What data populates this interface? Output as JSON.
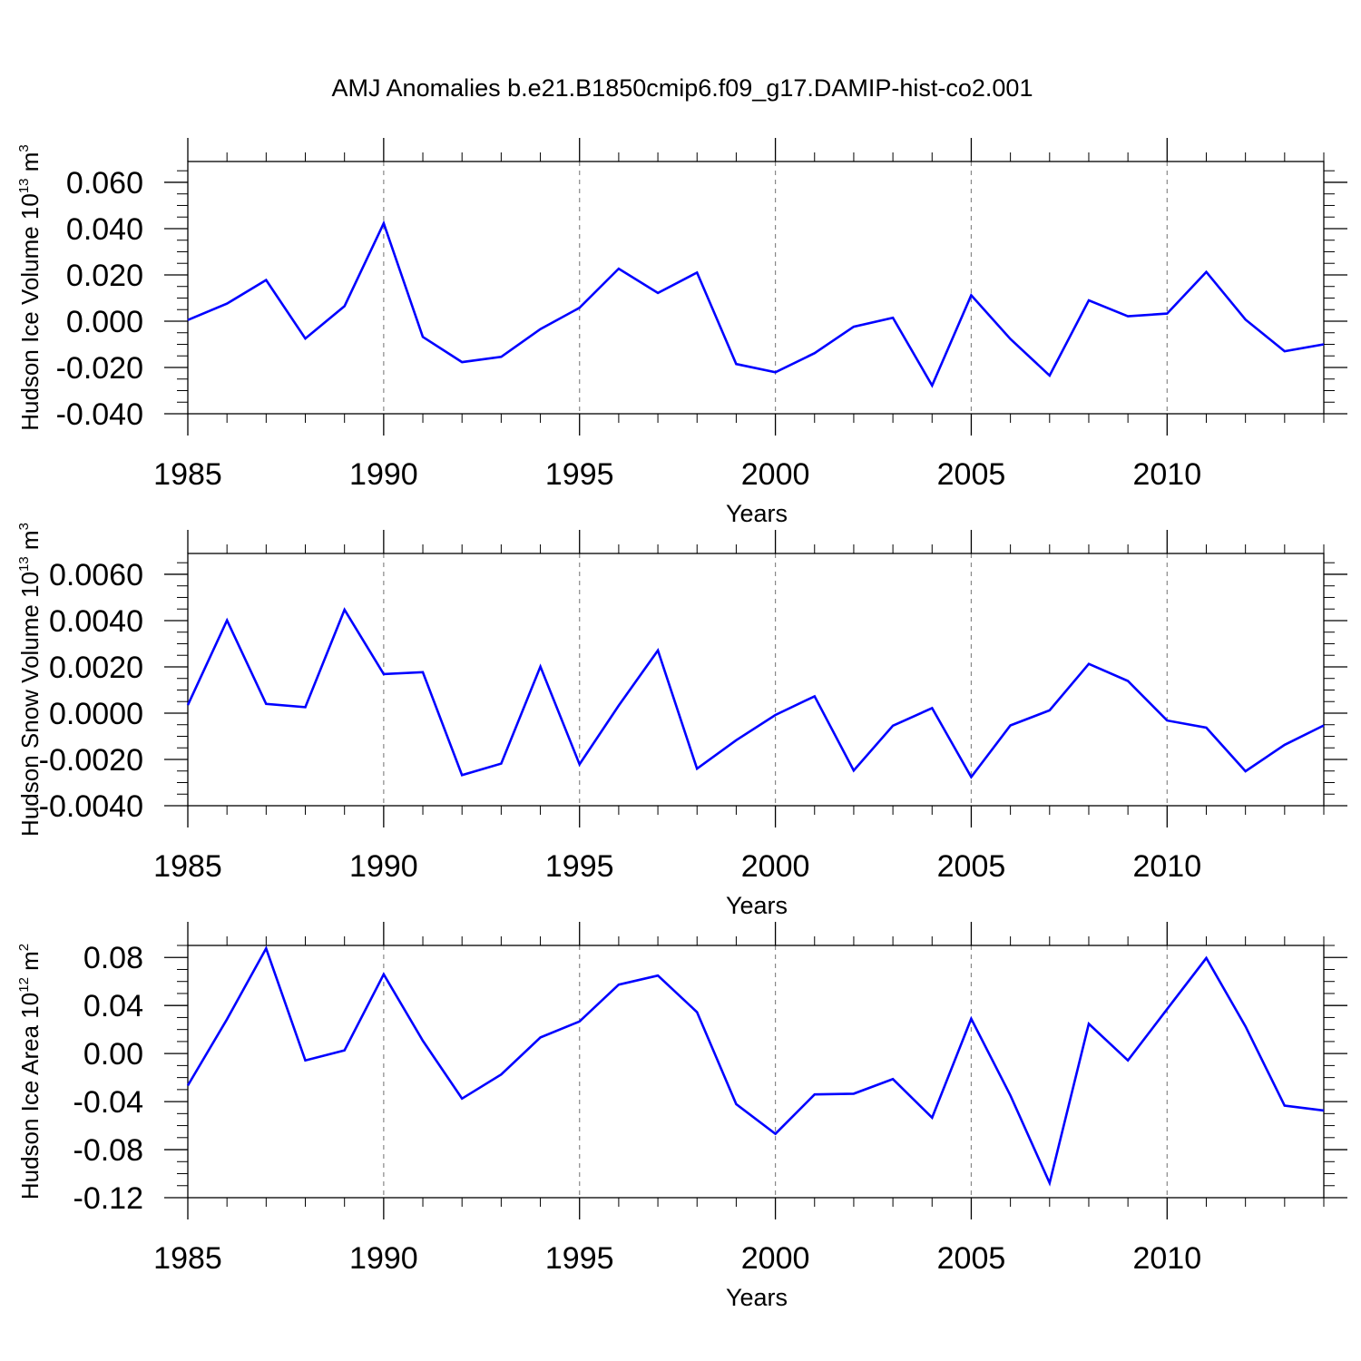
{
  "page": {
    "title": "AMJ Anomalies b.e21.B1850cmip6.f09_g17.DAMIP-hist-co2.001"
  },
  "chart_data": [
    {
      "type": "line",
      "xlabel": "Years",
      "ylabel": {
        "main": "Hudson Ice Volume 10",
        "exp": "13",
        "unit": " m",
        "unit_exp": "3"
      },
      "xlim": [
        1985,
        2014
      ],
      "ylim": [
        -0.04,
        0.069
      ],
      "yticks": [
        -0.04,
        -0.02,
        0.0,
        0.02,
        0.04,
        0.06
      ],
      "ytick_labels": [
        "-0.040",
        "-0.020",
        "0.000",
        "0.020",
        "0.040",
        "0.060"
      ],
      "ytick_minor_step": 0.005,
      "xticks": [
        1985,
        1990,
        1995,
        2000,
        2005,
        2010
      ],
      "xtick_labels": [
        "1985",
        "1990",
        "1995",
        "2000",
        "2005",
        "2010"
      ],
      "grid": "dashed vertical at major x ticks",
      "series": [
        {
          "color": "#0000ff",
          "x": [
            1985,
            1986,
            1987,
            1988,
            1989,
            1990,
            1991,
            1992,
            1993,
            1994,
            1995,
            1996,
            1997,
            1998,
            1999,
            2000,
            2001,
            2002,
            2003,
            2004,
            2005,
            2006,
            2007,
            2008,
            2009,
            2010,
            2011,
            2012,
            2013,
            2014
          ],
          "values": [
            0.0005,
            0.0076,
            0.0178,
            -0.0075,
            0.0065,
            0.0423,
            -0.0068,
            -0.0177,
            -0.0154,
            -0.0034,
            0.0058,
            0.0227,
            0.0122,
            0.021,
            -0.0185,
            -0.0221,
            -0.0138,
            -0.0024,
            0.0015,
            -0.0278,
            0.0112,
            -0.0077,
            -0.0235,
            0.009,
            0.0021,
            0.0033,
            0.0213,
            0.0007,
            -0.013,
            -0.01
          ]
        }
      ]
    },
    {
      "type": "line",
      "xlabel": "Years",
      "ylabel": {
        "main": "Hudson Snow Volume 10",
        "exp": "13",
        "unit": " m",
        "unit_exp": "3"
      },
      "xlim": [
        1985,
        2014
      ],
      "ylim": [
        -0.004,
        0.0069
      ],
      "yticks": [
        -0.004,
        -0.002,
        0.0,
        0.002,
        0.004,
        0.006
      ],
      "ytick_labels": [
        "-0.0040",
        "-0.0020",
        "0.0000",
        "0.0020",
        "0.0040",
        "0.0060"
      ],
      "ytick_minor_step": 0.0005,
      "xticks": [
        1985,
        1990,
        1995,
        2000,
        2005,
        2010
      ],
      "xtick_labels": [
        "1985",
        "1990",
        "1995",
        "2000",
        "2005",
        "2010"
      ],
      "grid": "dashed vertical at major x ticks",
      "series": [
        {
          "color": "#0000ff",
          "x": [
            1985,
            1986,
            1987,
            1988,
            1989,
            1990,
            1991,
            1992,
            1993,
            1994,
            1995,
            1996,
            1997,
            1998,
            1999,
            2000,
            2001,
            2002,
            2003,
            2004,
            2005,
            2006,
            2007,
            2008,
            2009,
            2010,
            2011,
            2012,
            2013,
            2014
          ],
          "values": [
            0.00035,
            0.00401,
            0.0004,
            0.00026,
            0.00447,
            0.00169,
            0.00177,
            -0.00268,
            -0.00218,
            0.00201,
            -0.00221,
            0.00033,
            0.00271,
            -0.0024,
            -0.00117,
            -8e-05,
            0.00073,
            -0.00248,
            -0.00054,
            0.00022,
            -0.00276,
            -0.00053,
            0.00012,
            0.00213,
            0.00139,
            -0.00032,
            -0.00063,
            -0.00251,
            -0.00137,
            -0.00053
          ]
        }
      ]
    },
    {
      "type": "line",
      "xlabel": "Years",
      "ylabel": {
        "main": "Hudson Ice Area 10",
        "exp": "12",
        "unit": " m",
        "unit_exp": "2"
      },
      "xlim": [
        1985,
        2014
      ],
      "ylim": [
        -0.12,
        0.09
      ],
      "yticks": [
        -0.12,
        -0.08,
        -0.04,
        0.0,
        0.04,
        0.08
      ],
      "ytick_labels": [
        "-0.12",
        "-0.08",
        "-0.04",
        "0.00",
        "0.04",
        "0.08"
      ],
      "ytick_minor_step": 0.01,
      "xticks": [
        1985,
        1990,
        1995,
        2000,
        2005,
        2010
      ],
      "xtick_labels": [
        "1985",
        "1990",
        "1995",
        "2000",
        "2005",
        "2010"
      ],
      "grid": "dashed vertical at major x ticks",
      "series": [
        {
          "color": "#0000ff",
          "x": [
            1985,
            1986,
            1987,
            1988,
            1989,
            1990,
            1991,
            1992,
            1993,
            1994,
            1995,
            1996,
            1997,
            1998,
            1999,
            2000,
            2001,
            2002,
            2003,
            2004,
            2005,
            2006,
            2007,
            2008,
            2009,
            2010,
            2011,
            2012,
            2013,
            2014
          ],
          "values": [
            -0.0266,
            0.0286,
            0.0875,
            -0.0057,
            0.0027,
            0.066,
            0.0107,
            -0.0375,
            -0.0174,
            0.0134,
            0.0267,
            0.0574,
            0.0649,
            0.0345,
            -0.0421,
            -0.0668,
            -0.034,
            -0.0334,
            -0.0213,
            -0.0534,
            0.029,
            -0.0349,
            -0.1078,
            0.0247,
            -0.0057,
            0.037,
            0.0795,
            0.0226,
            -0.0434,
            -0.0474
          ]
        }
      ]
    }
  ]
}
